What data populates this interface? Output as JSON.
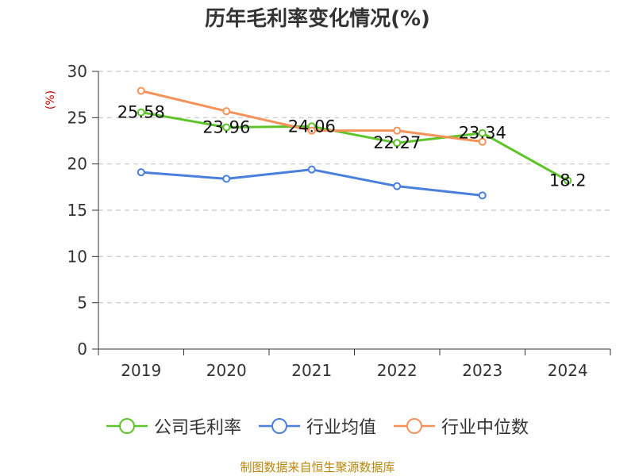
{
  "title": "历年毛利率变化情况(%)",
  "footer": "制图数据来自恒生聚源数据库",
  "chart_data": {
    "type": "line",
    "title": "历年毛利率变化情况(%)",
    "xlabel": "",
    "ylabel": "(%)",
    "categories": [
      "2019",
      "2020",
      "2021",
      "2022",
      "2023",
      "2024"
    ],
    "yticks": [
      "0",
      "5",
      "10",
      "15",
      "20",
      "25",
      "30"
    ],
    "ylim": [
      0,
      30
    ],
    "grid": true,
    "legend_position": "bottom",
    "series": [
      {
        "name": "公司毛利率",
        "color": "#5ec42a",
        "values": [
          25.58,
          23.96,
          24.06,
          22.27,
          23.34,
          18.2
        ],
        "labels": [
          "25.58",
          "23.96",
          "24.06",
          "22.27",
          "23.34",
          "18.2"
        ]
      },
      {
        "name": "行业均值",
        "color": "#4a7fdc",
        "values": [
          19.1,
          18.4,
          19.4,
          17.6,
          16.6,
          null
        ]
      },
      {
        "name": "行业中位数",
        "color": "#f4925a",
        "values": [
          27.9,
          25.7,
          23.6,
          23.6,
          22.4,
          null
        ]
      }
    ]
  }
}
